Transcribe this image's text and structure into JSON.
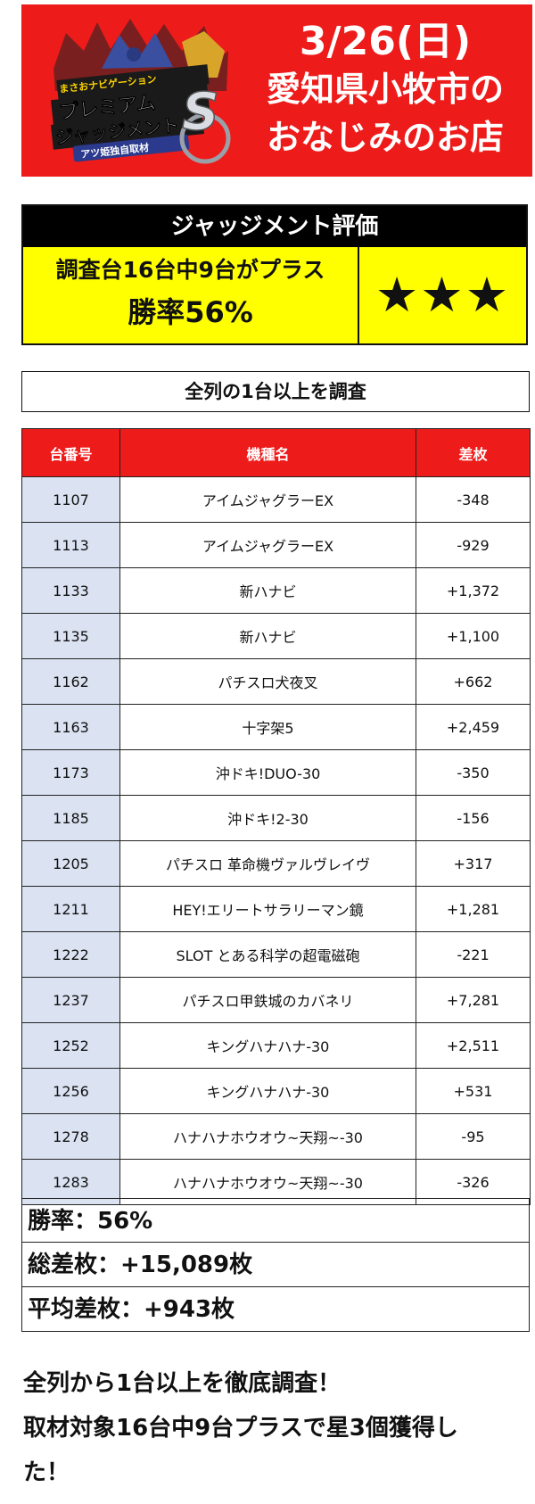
{
  "banner": {
    "logo_text_top": "まさおナビゲーション",
    "logo_text_main1": "プレミアム",
    "logo_text_main2": "ジャッジメント",
    "logo_letter": "S",
    "logo_text_sub": "アツ姫独自取材",
    "date": "3/26(日)",
    "line1": "愛知県小牧市の",
    "line2": "おなじみのお店"
  },
  "judgment": {
    "header": "ジャッジメント評価",
    "line1": "調査台16台中9台がプラス",
    "line2": "勝率56%",
    "stars": "★★★"
  },
  "section_label": "全列の1台以上を調査",
  "table": {
    "headers": [
      "台番号",
      "機種名",
      "差枚"
    ],
    "rows": [
      [
        "1107",
        "アイムジャグラーEX",
        "-348"
      ],
      [
        "1113",
        "アイムジャグラーEX",
        "-929"
      ],
      [
        "1133",
        "新ハナビ",
        "+1,372"
      ],
      [
        "1135",
        "新ハナビ",
        "+1,100"
      ],
      [
        "1162",
        "パチスロ犬夜叉",
        "+662"
      ],
      [
        "1163",
        "十字架5",
        "+2,459"
      ],
      [
        "1173",
        "沖ドキ!DUO-30",
        "-350"
      ],
      [
        "1185",
        "沖ドキ!2-30",
        "-156"
      ],
      [
        "1205",
        "パチスロ 革命機ヴァルヴレイヴ",
        "+317"
      ],
      [
        "1211",
        "HEY!エリートサラリーマン鏡",
        "+1,281"
      ],
      [
        "1222",
        "SLOT とある科学の超電磁砲",
        "-221"
      ],
      [
        "1237",
        "パチスロ甲鉄城のカバネリ",
        "+7,281"
      ],
      [
        "1252",
        "キングハナハナ-30",
        "+2,511"
      ],
      [
        "1256",
        "キングハナハナ-30",
        "+531"
      ],
      [
        "1278",
        "ハナハナホウオウ~天翔~-30",
        "-95"
      ],
      [
        "1283",
        "ハナハナホウオウ~天翔~-30",
        "-326"
      ]
    ]
  },
  "summary": {
    "win_rate": "勝率：56%",
    "total": "総差枚：+15,089枚",
    "average": "平均差枚：+943枚"
  },
  "closing": {
    "line1": "全列から1台以上を徹底調査！",
    "line2": "取材対象16台中9台プラスで星3個獲得し",
    "line3": "た！"
  },
  "colors": {
    "banner_red": "#ee1b1b",
    "judge_yellow": "#ffff00",
    "number_cell_blue": "#dbe3f3"
  }
}
